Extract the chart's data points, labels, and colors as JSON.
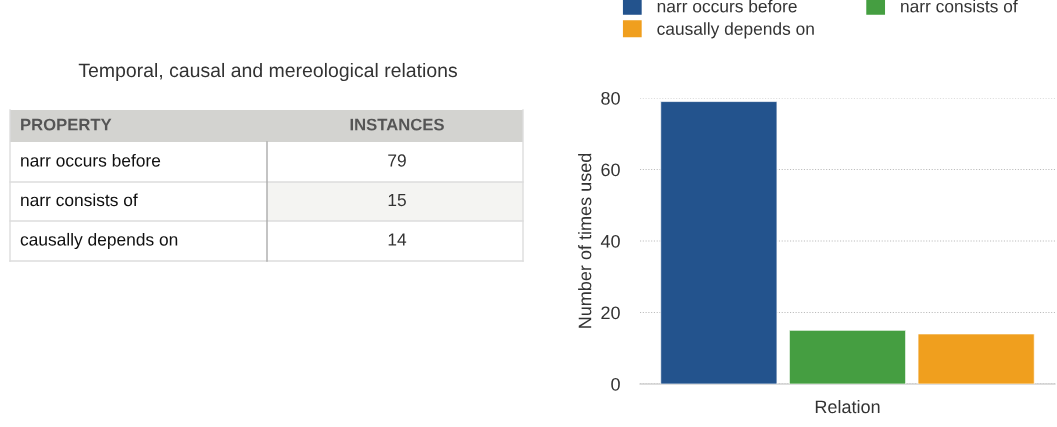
{
  "chart_data": [
    {
      "type": "other",
      "title": "Temporal, causal and mereological relations",
      "annotations": [
        "PROPERTY",
        "INSTANCES",
        "narr occurs before",
        "79",
        "narr consists of",
        "15",
        "causally depends on",
        "14"
      ]
    },
    {
      "type": "bar",
      "xlabel": "Relation",
      "ylabel": "Number of times used",
      "categories": [
        null
      ],
      "series": [
        {
          "name": "narr occurs before",
          "color": "#23538d",
          "values": [
            79
          ]
        },
        {
          "name": "narr consists of",
          "color": "#459e41",
          "values": [
            15
          ]
        },
        {
          "name": "causally depends on",
          "color": "#f09f1e",
          "values": [
            14
          ]
        }
      ],
      "ylim": [
        0,
        80
      ],
      "yticks": [
        0,
        20,
        40,
        60,
        80
      ],
      "grid": "y",
      "legend": "top"
    }
  ]
}
